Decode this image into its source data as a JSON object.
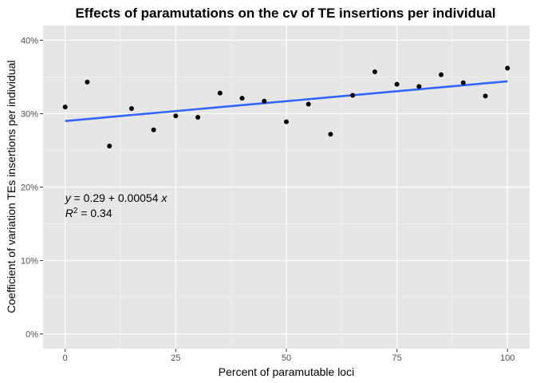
{
  "chart_data": {
    "type": "scatter",
    "title": "Effects of paramutations on the cv of TE insertions per individual",
    "xlabel": "Percent of paramutable loci",
    "ylabel": "Coefficient of variation TEs insertions per individual",
    "xlim": [
      -5,
      105
    ],
    "ylim": [
      -0.02,
      0.42
    ],
    "x_ticks": [
      0,
      25,
      50,
      75,
      100
    ],
    "x_tick_labels": [
      "0",
      "25",
      "50",
      "75",
      "100"
    ],
    "x_minor_ticks": [
      12.5,
      37.5,
      62.5,
      87.5
    ],
    "y_ticks": [
      0,
      0.1,
      0.2,
      0.3,
      0.4
    ],
    "y_tick_labels": [
      "0%",
      "10%",
      "20%",
      "30%",
      "40%"
    ],
    "y_minor_ticks": [
      0.05,
      0.15,
      0.25,
      0.35
    ],
    "grid": true,
    "panel_background": "#e6e6e6",
    "point_color": "#000000",
    "line_color": "#3366ff",
    "points": [
      {
        "x": 0,
        "y": 0.309
      },
      {
        "x": 5,
        "y": 0.343
      },
      {
        "x": 10,
        "y": 0.256
      },
      {
        "x": 15,
        "y": 0.307
      },
      {
        "x": 20,
        "y": 0.278
      },
      {
        "x": 25,
        "y": 0.297
      },
      {
        "x": 30,
        "y": 0.295
      },
      {
        "x": 35,
        "y": 0.328
      },
      {
        "x": 40,
        "y": 0.321
      },
      {
        "x": 45,
        "y": 0.317
      },
      {
        "x": 50,
        "y": 0.289
      },
      {
        "x": 55,
        "y": 0.313
      },
      {
        "x": 60,
        "y": 0.272
      },
      {
        "x": 65,
        "y": 0.325
      },
      {
        "x": 70,
        "y": 0.357
      },
      {
        "x": 75,
        "y": 0.34
      },
      {
        "x": 80,
        "y": 0.337
      },
      {
        "x": 85,
        "y": 0.353
      },
      {
        "x": 90,
        "y": 0.342
      },
      {
        "x": 95,
        "y": 0.324
      },
      {
        "x": 100,
        "y": 0.362
      }
    ],
    "fit_line": {
      "intercept": 0.29,
      "slope": 0.00054,
      "x_range": [
        0,
        100
      ]
    },
    "annotation": {
      "equation_prefix": "y",
      "equation_body": " = 0.29 + 0.00054 ",
      "equation_var": "x",
      "r2_prefix": "R",
      "r2_sup": "2",
      "r2_body": " = 0.34",
      "anchor_x": 0,
      "anchor_y": 0.18
    }
  }
}
